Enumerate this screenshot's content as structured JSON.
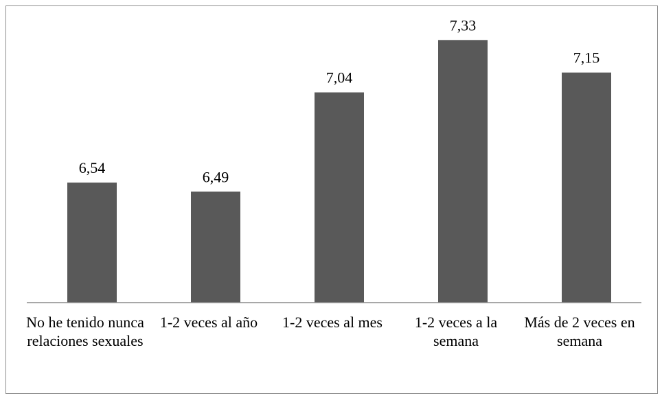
{
  "chart_data": {
    "type": "bar",
    "categories": [
      "No he tenido nunca relaciones sexuales",
      "1-2 veces al año",
      "1-2 veces al mes",
      "1-2 veces a la semana",
      "Más de 2 veces en semana"
    ],
    "values": [
      6.54,
      6.49,
      7.04,
      7.33,
      7.15
    ],
    "data_labels": [
      "6,54",
      "6,49",
      "7,04",
      "7,33",
      "7,15"
    ],
    "title": "",
    "xlabel": "",
    "ylabel": "",
    "y_axis_visible": false,
    "grid": false,
    "legend": "none",
    "bar_color": "#595959"
  }
}
